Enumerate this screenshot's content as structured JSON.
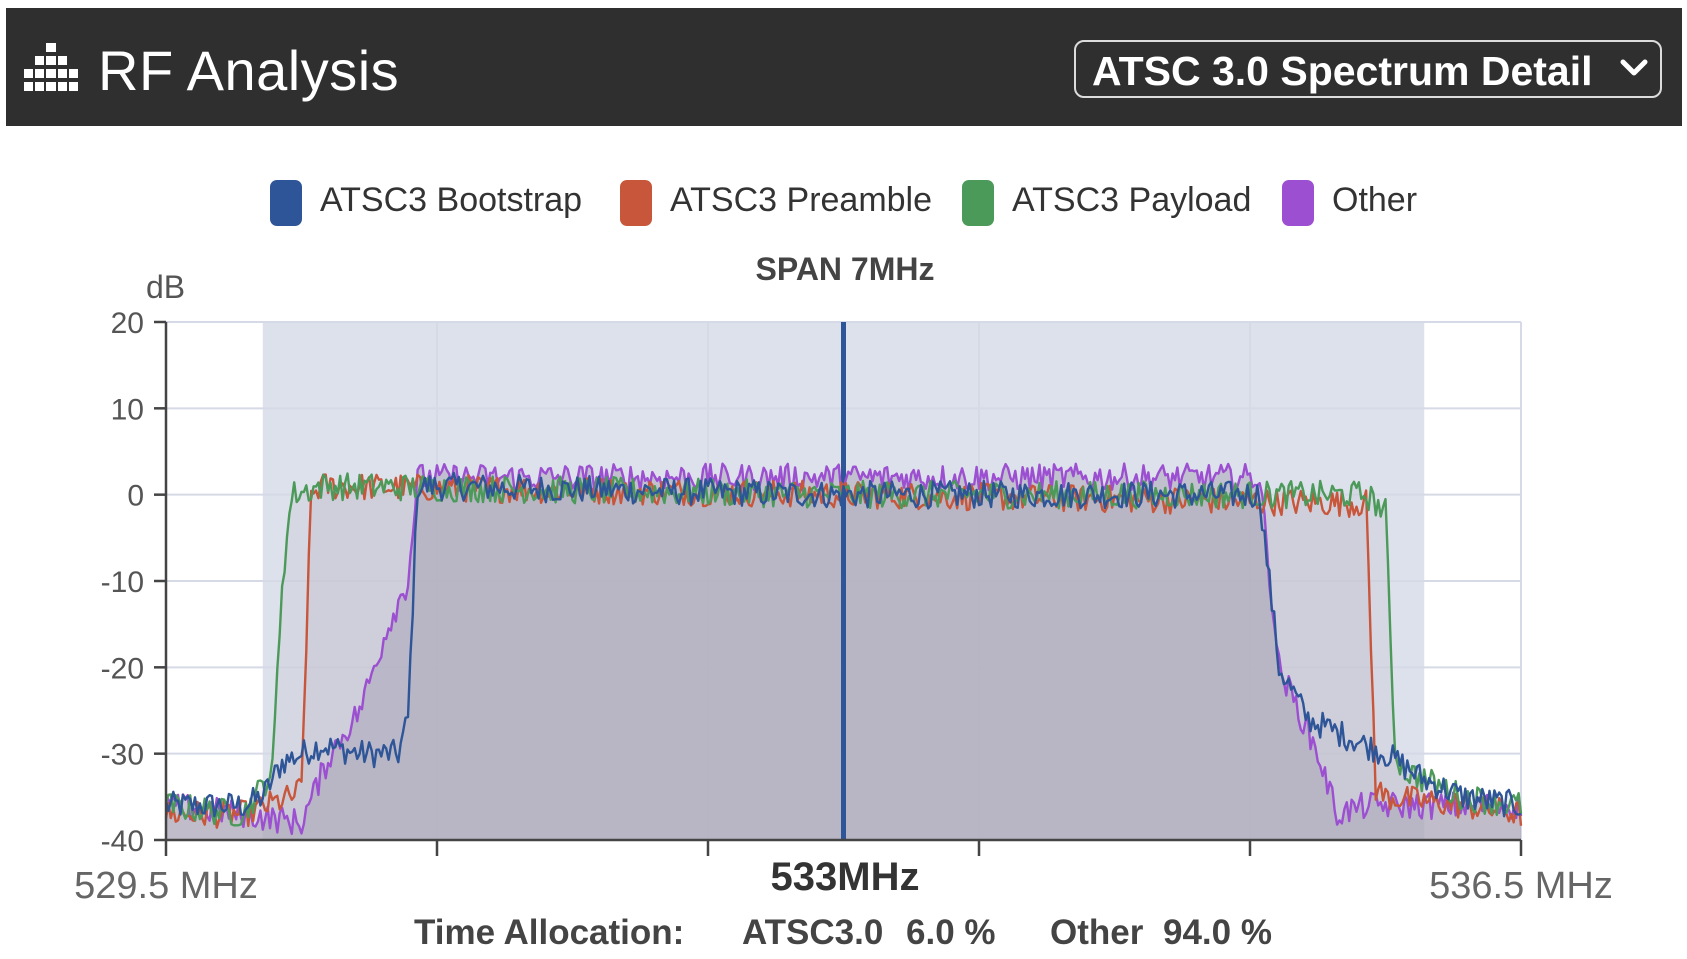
{
  "header": {
    "title": "RF Analysis",
    "icon": "bar-chart-icon",
    "selector_label": "ATSC 3.0 Spectrum Detail",
    "selector_icon": "chevron-down-icon"
  },
  "colors": {
    "header_bg": "#2f2f2f",
    "bootstrap": "#2e5597",
    "preamble": "#c8563a",
    "payload": "#4c9a5a",
    "other": "#9c4fd0",
    "span_fill": "#dde1ec",
    "occupied_fill": "#aaa6b8"
  },
  "chart_data": {
    "type": "line",
    "title": "SPAN 7MHz",
    "ylabel": "dB",
    "ylim": [
      -40,
      20
    ],
    "yticks": [
      "20",
      "10",
      "0",
      "-10",
      "-20",
      "-30",
      "-40"
    ],
    "xlim": [
      529.5,
      536.5
    ],
    "x_left_label": "529.5 MHz",
    "x_center_label": "533MHz",
    "x_right_label": "536.5 MHz",
    "center_frequency": 533,
    "grid": true,
    "legend_position": "top",
    "shaded_span": [
      530.0,
      536.0
    ],
    "series": [
      {
        "name": "ATSC3 Bootstrap",
        "color": "#2e5597",
        "x": [
          529.5,
          529.9,
          530.0,
          530.1,
          530.3,
          530.5,
          530.7,
          530.75,
          530.8,
          533.0,
          535.15,
          535.25,
          535.4,
          535.6,
          535.8,
          536.0,
          536.2,
          536.5
        ],
        "y": [
          -36,
          -36,
          -35,
          -31,
          -29,
          -30,
          -30,
          -26,
          1,
          0,
          0,
          -20,
          -26,
          -28,
          -30,
          -33,
          -35,
          -36
        ]
      },
      {
        "name": "ATSC3 Preamble",
        "color": "#c8563a",
        "x": [
          529.5,
          529.9,
          530.15,
          530.2,
          530.25,
          530.3,
          533.0,
          535.7,
          535.75,
          535.8,
          536.2,
          536.5
        ],
        "y": [
          -37,
          -37,
          -35,
          -34,
          0,
          1,
          0,
          -1,
          -34,
          -35,
          -36,
          -37
        ]
      },
      {
        "name": "ATSC3 Payload",
        "color": "#4c9a5a",
        "x": [
          529.5,
          529.9,
          530.05,
          530.1,
          530.15,
          530.3,
          533.0,
          535.7,
          535.8,
          535.85,
          535.9,
          536.2,
          536.5
        ],
        "y": [
          -36,
          -37,
          -32,
          -10,
          0,
          1,
          0,
          0,
          -2,
          -30,
          -32,
          -35,
          -36
        ]
      },
      {
        "name": "Other",
        "color": "#9c4fd0",
        "x": [
          529.5,
          529.9,
          530.2,
          530.35,
          530.5,
          530.65,
          530.75,
          530.8,
          533.0,
          535.15,
          535.25,
          535.45,
          535.55,
          535.7,
          536.0,
          536.5
        ],
        "y": [
          -36,
          -37,
          -38,
          -30,
          -25,
          -15,
          -10,
          2,
          2,
          2,
          -20,
          -30,
          -37,
          -36,
          -36,
          -36
        ]
      }
    ]
  },
  "footer": {
    "label": "Time Allocation:",
    "atsc_label": "ATSC3.0",
    "atsc_value": "6.0 %",
    "other_label": "Other",
    "other_value": "94.0 %"
  }
}
